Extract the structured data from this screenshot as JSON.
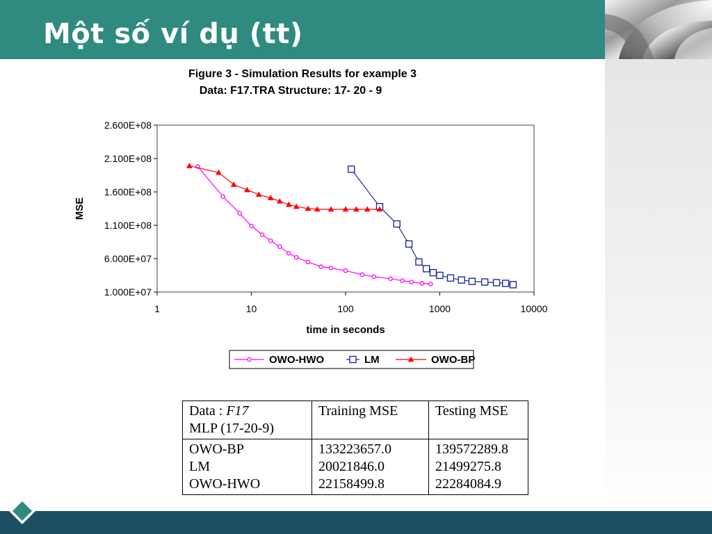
{
  "slide": {
    "title": "Một số ví dụ (tt)"
  },
  "colors": {
    "header": "#2f8a80",
    "footer": "#1d4f62",
    "owo_hwo": "#ff00ff",
    "lm": "#1f2a9c",
    "owo_bp": "#ff0000"
  },
  "chart_data": {
    "type": "line",
    "title": "Figure 3 - Simulation Results for example 3",
    "subtitle": "Data: F17.TRA Structure: 17- 20 - 9",
    "xlabel": "time in seconds",
    "ylabel": "MSE",
    "xscale": "log",
    "xlim": [
      1,
      10000
    ],
    "ylim": [
      10000000,
      260000000
    ],
    "xticks": [
      1,
      10,
      100,
      1000,
      10000
    ],
    "xtick_labels": [
      "1",
      "10",
      "100",
      "1000",
      "10000"
    ],
    "yticks": [
      10000000,
      60000000,
      110000000,
      160000000,
      210000000,
      260000000
    ],
    "ytick_labels": [
      "1.000E+07",
      "6.000E+07",
      "1.100E+08",
      "1.600E+08",
      "2.100E+08",
      "2.600E+08"
    ],
    "grid": false,
    "legend_position": "bottom",
    "series": [
      {
        "name": "OWO-HWO",
        "color": "#ff00ff",
        "marker": "circle",
        "x": [
          2.7,
          5,
          7.5,
          10,
          13,
          16,
          20,
          25,
          30,
          40,
          55,
          70,
          100,
          150,
          200,
          300,
          400,
          500,
          650,
          800
        ],
        "y": [
          198000000,
          153000000,
          128000000,
          109000000,
          96000000,
          87000000,
          78000000,
          68000000,
          62000000,
          55000000,
          48000000,
          46000000,
          42000000,
          36000000,
          33000000,
          30000000,
          27000000,
          25000000,
          23000000,
          22000000
        ]
      },
      {
        "name": "LM",
        "color": "#1f2a9c",
        "marker": "square",
        "x": [
          115,
          230,
          350,
          470,
          600,
          720,
          850,
          1000,
          1300,
          1700,
          2200,
          3000,
          4000,
          5000,
          6000
        ],
        "y": [
          194000000,
          138000000,
          112000000,
          82000000,
          55000000,
          45000000,
          39000000,
          35000000,
          31000000,
          28000000,
          26000000,
          25000000,
          24000000,
          23000000,
          21000000
        ]
      },
      {
        "name": "OWO-BP",
        "color": "#ff0000",
        "marker": "triangle",
        "x": [
          2.2,
          4.5,
          6.5,
          9,
          12,
          16,
          20,
          25,
          30,
          40,
          50,
          70,
          100,
          130,
          170,
          230
        ],
        "y": [
          199000000,
          189000000,
          171000000,
          163000000,
          156000000,
          151000000,
          146000000,
          141000000,
          138000000,
          135000000,
          134000000,
          134000000,
          134000000,
          134000000,
          134000000,
          134000000
        ]
      }
    ]
  },
  "table": {
    "header": {
      "data_prefix": "Data  : ",
      "data_name": "F17",
      "mlp": "MLP (17-20-9)",
      "training": "Training MSE",
      "testing": "Testing MSE"
    },
    "methods": [
      "OWO-BP",
      "LM",
      "OWO-HWO"
    ],
    "training": [
      "133223657.0",
      "20021846.0",
      "22158499.8"
    ],
    "testing": [
      "139572289.8",
      "21499275.8",
      "22284084.9"
    ]
  }
}
